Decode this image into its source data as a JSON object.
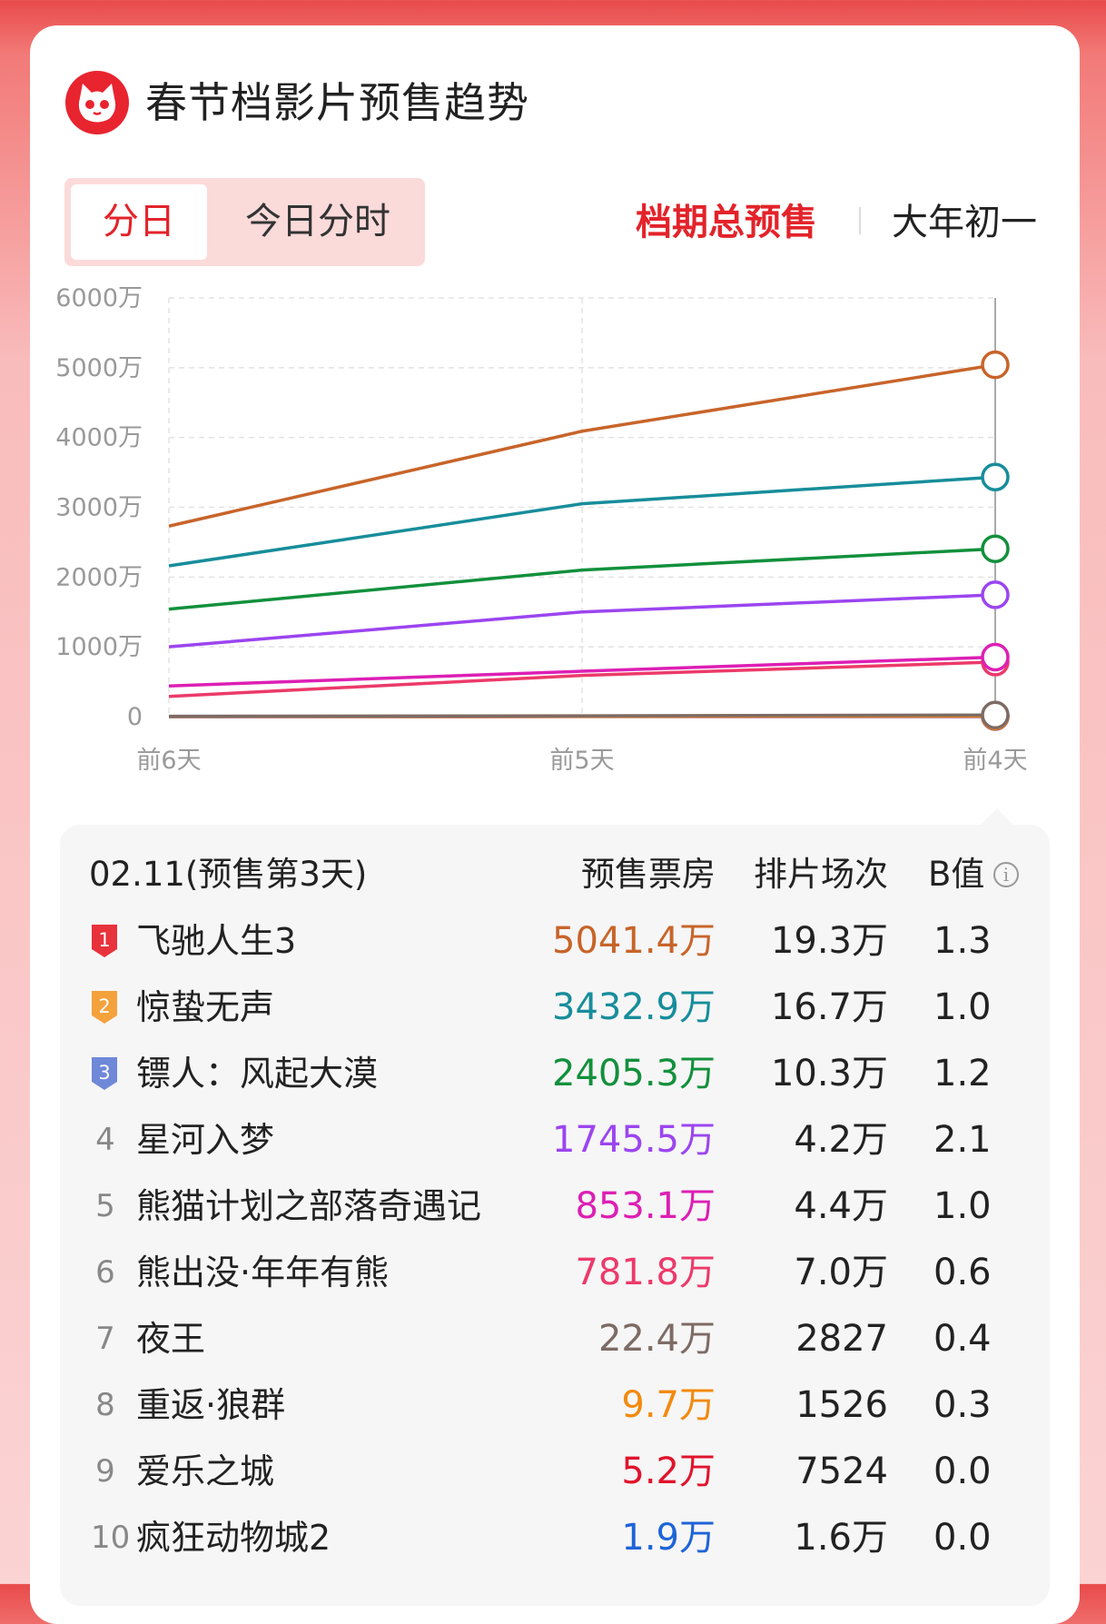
{
  "header": {
    "title": "春节档影片预售趋势",
    "logo_icon": "cat-logo-icon"
  },
  "segment": {
    "daily": "分日",
    "hourly": "今日分时"
  },
  "tabs": {
    "total": "档期总预售",
    "day1": "大年初一"
  },
  "colors": {
    "accent": "#e3232a"
  },
  "chart_data": {
    "type": "line",
    "categories": [
      "前6天",
      "前5天",
      "前4天"
    ],
    "y_ticks": [
      "0",
      "1000万",
      "2000万",
      "3000万",
      "4000万",
      "5000万",
      "6000万"
    ],
    "ylim": [
      0,
      6000
    ],
    "unit": "万",
    "grid": true,
    "series": [
      {
        "name": "飞驰人生3",
        "color": "#c8642a",
        "values": [
          2730,
          4090,
          5041.4
        ]
      },
      {
        "name": "惊蛰无声",
        "color": "#178d9b",
        "values": [
          2160,
          3050,
          3432.9
        ]
      },
      {
        "name": "镖人：风起大漠",
        "color": "#12903c",
        "values": [
          1540,
          2100,
          2405.3
        ]
      },
      {
        "name": "星河入梦",
        "color": "#9b45f0",
        "values": [
          1000,
          1500,
          1745.5
        ]
      },
      {
        "name": "熊猫计划之部落奇遇记",
        "color": "#dd1fb4",
        "values": [
          440,
          650,
          853.1
        ]
      },
      {
        "name": "熊出没·年年有熊",
        "color": "#ec3a6a",
        "values": [
          290,
          590,
          781.8
        ]
      },
      {
        "name": "夜王",
        "color": "#7d6b64",
        "values": [
          5,
          12,
          22.4
        ]
      },
      {
        "name": "重返·狼群",
        "color": "#f3890e",
        "values": [
          2,
          5,
          9.7
        ]
      },
      {
        "name": "爱乐之城",
        "color": "#e0142c",
        "values": [
          1,
          3,
          5.2
        ]
      },
      {
        "name": "疯狂动物城2",
        "color": "#1f64d8",
        "values": [
          0.3,
          1,
          1.9
        ]
      }
    ]
  },
  "table": {
    "date": "02.11(预售第3天)",
    "col_box": "预售票房",
    "col_shows": "排片场次",
    "col_b": "B值",
    "info_icon": "info-icon",
    "rows": [
      {
        "rank": "1",
        "name": "飞驰人生3",
        "box": "5041.4万",
        "shows": "19.3万",
        "b": "1.3",
        "color": "#c8642a",
        "badge": "#e8323c"
      },
      {
        "rank": "2",
        "name": "惊蛰无声",
        "box": "3432.9万",
        "shows": "16.7万",
        "b": "1.0",
        "color": "#178d9b",
        "badge": "#f4a23c"
      },
      {
        "rank": "3",
        "name": "镖人：风起大漠",
        "box": "2405.3万",
        "shows": "10.3万",
        "b": "1.2",
        "color": "#12903c",
        "badge": "#6f88d8"
      },
      {
        "rank": "4",
        "name": "星河入梦",
        "box": "1745.5万",
        "shows": "4.2万",
        "b": "2.1",
        "color": "#9b45f0"
      },
      {
        "rank": "5",
        "name": "熊猫计划之部落奇遇记",
        "box": "853.1万",
        "shows": "4.4万",
        "b": "1.0",
        "color": "#dd1fb4"
      },
      {
        "rank": "6",
        "name": "熊出没·年年有熊",
        "box": "781.8万",
        "shows": "7.0万",
        "b": "0.6",
        "color": "#ec3a6a"
      },
      {
        "rank": "7",
        "name": "夜王",
        "box": "22.4万",
        "shows": "2827",
        "b": "0.4",
        "color": "#7d6b64"
      },
      {
        "rank": "8",
        "name": "重返·狼群",
        "box": "9.7万",
        "shows": "1526",
        "b": "0.3",
        "color": "#f3890e"
      },
      {
        "rank": "9",
        "name": "爱乐之城",
        "box": "5.2万",
        "shows": "7524",
        "b": "0.0",
        "color": "#e0142c"
      },
      {
        "rank": "10",
        "name": "疯狂动物城2",
        "box": "1.9万",
        "shows": "1.6万",
        "b": "0.0",
        "color": "#1f64d8"
      }
    ]
  }
}
